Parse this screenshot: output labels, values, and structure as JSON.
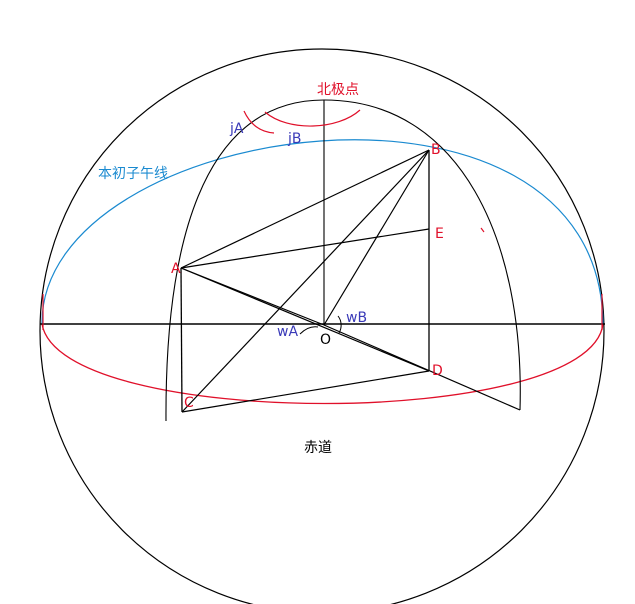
{
  "labels": {
    "north_pole": "北极点",
    "prime_meridian": "本初子午线",
    "equator": "赤道",
    "point_a": "A",
    "point_b": "B",
    "point_c": "C",
    "point_d": "D",
    "point_e": "E",
    "center_o": "O",
    "angle_ja": "jA",
    "angle_jb": "jB",
    "angle_wa": "wA",
    "angle_wb": "wB"
  },
  "colors": {
    "line": "#000000",
    "red": "#e0102a",
    "blue": "#1a8ad0",
    "angle_blue": "#3a3ab8"
  }
}
